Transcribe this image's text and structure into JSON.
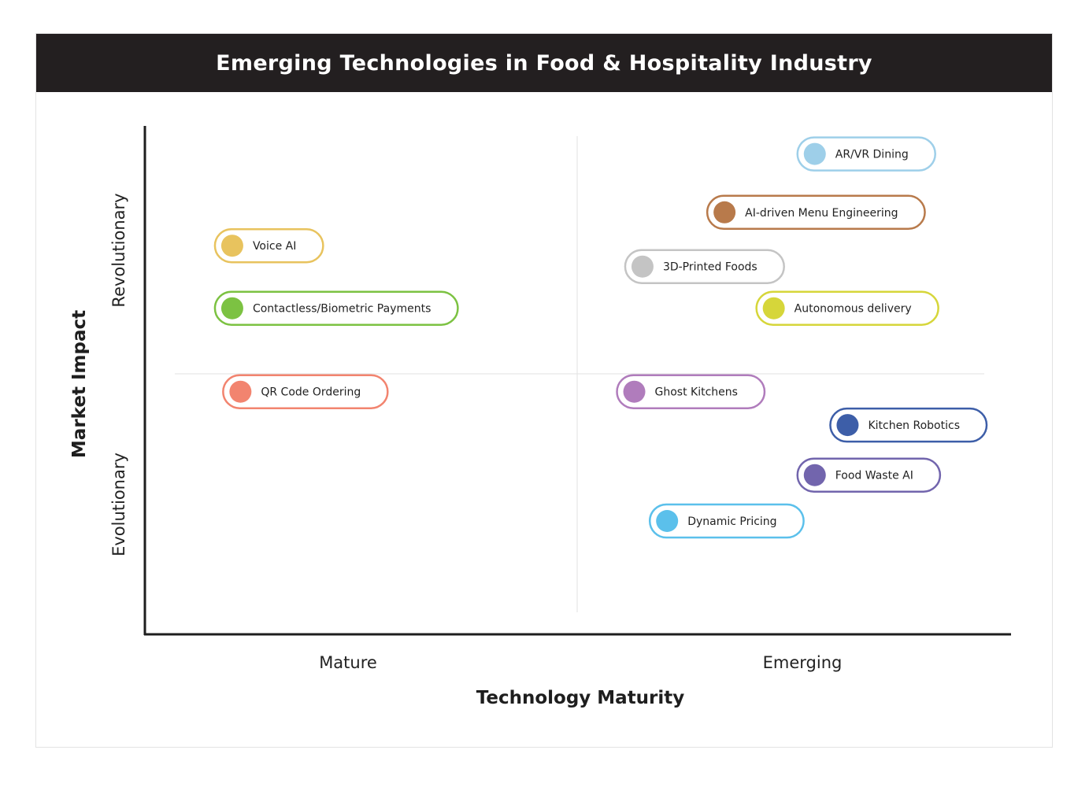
{
  "chart_data": {
    "type": "scatter",
    "title": "Emerging Technologies in Food & Hospitality Industry",
    "xlabel": "Technology Maturity",
    "ylabel": "Market Impact",
    "x_categories": [
      "Mature",
      "Emerging"
    ],
    "y_categories": [
      "Evolutionary",
      "Revolutionary"
    ],
    "xlim": [
      0,
      10
    ],
    "ylim": [
      0,
      10
    ],
    "points": [
      {
        "label": "AR/VR Dining",
        "x": 7.8,
        "y": 9.8,
        "color": "#9ecfe9"
      },
      {
        "label": "AI-driven Menu Engineering",
        "x": 6.7,
        "y": 8.4,
        "color": "#b87a4b"
      },
      {
        "label": "3D-Printed Foods",
        "x": 5.7,
        "y": 7.1,
        "color": "#c4c4c4"
      },
      {
        "label": "Autonomous delivery",
        "x": 7.3,
        "y": 6.1,
        "color": "#d6d63a"
      },
      {
        "label": "Voice AI",
        "x": 0.7,
        "y": 7.6,
        "color": "#e8c35e"
      },
      {
        "label": "Contactless/Biometric Payments",
        "x": 0.7,
        "y": 6.1,
        "color": "#7cc242"
      },
      {
        "label": "QR Code Ordering",
        "x": 0.8,
        "y": 4.1,
        "color": "#f2846f"
      },
      {
        "label": "Ghost Kitchens",
        "x": 5.6,
        "y": 4.1,
        "color": "#b07cbc"
      },
      {
        "label": "Kitchen Robotics",
        "x": 8.2,
        "y": 3.3,
        "color": "#3d5ea8"
      },
      {
        "label": "Food Waste AI",
        "x": 7.8,
        "y": 2.1,
        "color": "#7265ad"
      },
      {
        "label": "Dynamic Pricing",
        "x": 6.0,
        "y": 1.0,
        "color": "#5bc0eb"
      }
    ]
  }
}
